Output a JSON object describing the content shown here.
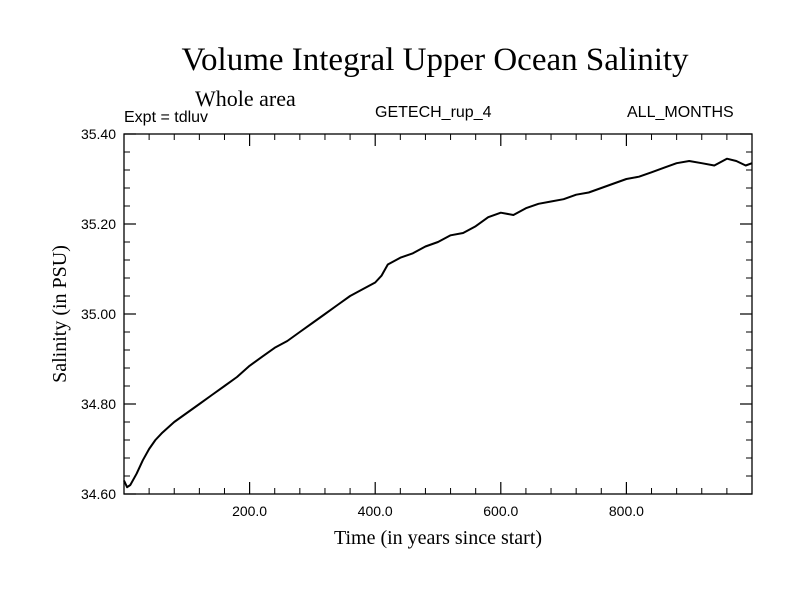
{
  "header": {
    "title": "Volume Integral Upper Ocean Salinity",
    "subtitle": "Whole area",
    "expt": "Expt = tdluv",
    "model": "GETECH_rup_4",
    "months": "ALL_MONTHS"
  },
  "chart_data": {
    "type": "line",
    "title": "Volume Integral Upper Ocean Salinity",
    "xlabel": "Time (in years since start)",
    "ylabel": "Salinity (in PSU)",
    "xlim": [
      0,
      1000
    ],
    "ylim": [
      34.6,
      35.4
    ],
    "x_ticks": [
      200,
      400,
      600,
      800
    ],
    "x_tick_labels": [
      "200.0",
      "400.0",
      "600.0",
      "800.0"
    ],
    "y_ticks": [
      34.6,
      34.8,
      35.0,
      35.2,
      35.4
    ],
    "y_tick_labels": [
      "34.60",
      "34.80",
      "35.00",
      "35.20",
      "35.40"
    ],
    "grid": false,
    "series": [
      {
        "x": [
          0,
          5,
          10,
          20,
          30,
          40,
          50,
          60,
          80,
          100,
          120,
          140,
          160,
          180,
          200,
          220,
          240,
          260,
          280,
          300,
          320,
          340,
          360,
          380,
          400,
          410,
          420,
          440,
          460,
          480,
          500,
          520,
          540,
          560,
          580,
          600,
          620,
          640,
          660,
          680,
          700,
          720,
          740,
          760,
          780,
          800,
          820,
          840,
          860,
          880,
          900,
          920,
          940,
          960,
          975,
          990,
          1000
        ],
        "y": [
          34.63,
          34.615,
          34.62,
          34.645,
          34.675,
          34.7,
          34.72,
          34.735,
          34.76,
          34.78,
          34.8,
          34.82,
          34.84,
          34.86,
          34.885,
          34.905,
          34.925,
          34.94,
          34.96,
          34.98,
          35.0,
          35.02,
          35.04,
          35.055,
          35.07,
          35.085,
          35.11,
          35.125,
          35.135,
          35.15,
          35.16,
          35.175,
          35.18,
          35.195,
          35.215,
          35.225,
          35.22,
          35.235,
          35.245,
          35.25,
          35.255,
          35.265,
          35.27,
          35.28,
          35.29,
          35.3,
          35.305,
          35.315,
          35.325,
          35.335,
          35.34,
          35.335,
          35.33,
          35.345,
          35.34,
          35.33,
          35.335
        ],
        "color": "#000000"
      }
    ]
  }
}
